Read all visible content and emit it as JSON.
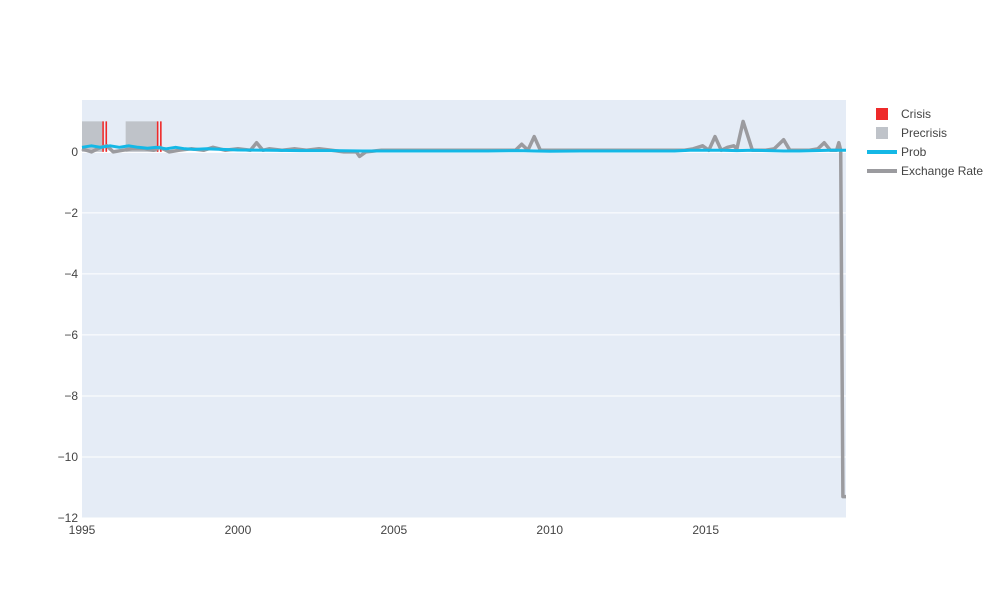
{
  "chart_data": {
    "type": "line",
    "title": "",
    "xlabel": "",
    "ylabel": "",
    "xlim": [
      1995.0,
      2019.5
    ],
    "ylim": [
      -12,
      1.7
    ],
    "x_ticks": [
      1995,
      2000,
      2005,
      2010,
      2015
    ],
    "x_tick_labels": [
      "1995",
      "2000",
      "2005",
      "2010",
      "2015"
    ],
    "y_ticks": [
      0,
      -2,
      -4,
      -6,
      -8,
      -10,
      -12
    ],
    "y_tick_labels": [
      "0",
      "−2",
      "−4",
      "−6",
      "−8",
      "−10",
      "−12"
    ],
    "grid": true,
    "legend_position": "right",
    "colors": {
      "plot_bg": "#e5ecf6",
      "grid": "#ffffff",
      "crisis": "#ee2a2a",
      "precrisis": "#bfc3c9",
      "prob": "#14b8e6",
      "exchange_rate": "#9b9b9f"
    },
    "legend": [
      {
        "name": "Crisis",
        "kind": "bar",
        "color_key": "crisis"
      },
      {
        "name": "Precrisis",
        "kind": "bar",
        "color_key": "precrisis"
      },
      {
        "name": "Prob",
        "kind": "line",
        "color_key": "prob"
      },
      {
        "name": "Exchange Rate",
        "kind": "line",
        "color_key": "exchange_rate"
      }
    ],
    "bar_height": 1.0,
    "precrisis_intervals": [
      [
        1995.0,
        1995.65
      ],
      [
        1996.4,
        1997.4
      ]
    ],
    "crisis_intervals": [
      [
        1995.65,
        1995.85
      ],
      [
        1997.4,
        1997.55
      ]
    ],
    "series": [
      {
        "name": "Exchange Rate",
        "color_key": "exchange_rate",
        "x": [
          1995.0,
          1995.3,
          1995.6,
          1995.8,
          1996.0,
          1996.3,
          1996.6,
          1997.0,
          1997.3,
          1997.5,
          1997.8,
          1998.1,
          1998.5,
          1998.9,
          1999.2,
          1999.6,
          2000.0,
          2000.4,
          2000.6,
          2000.8,
          2001.0,
          2001.4,
          2001.8,
          2002.2,
          2002.6,
          2003.0,
          2003.4,
          2003.8,
          2003.9,
          2004.1,
          2004.6,
          2005.0,
          2005.5,
          2006.0,
          2006.5,
          2007.0,
          2007.5,
          2008.0,
          2008.5,
          2008.9,
          2009.1,
          2009.3,
          2009.5,
          2009.7,
          2010.0,
          2010.5,
          2011.0,
          2011.5,
          2012.0,
          2012.5,
          2013.0,
          2013.5,
          2014.0,
          2014.3,
          2014.6,
          2014.9,
          2015.1,
          2015.3,
          2015.5,
          2015.7,
          2015.9,
          2016.0,
          2016.2,
          2016.5,
          2016.9,
          2017.2,
          2017.5,
          2017.7,
          2018.0,
          2018.3,
          2018.6,
          2018.8,
          2019.0,
          2019.1,
          2019.2,
          2019.27,
          2019.33,
          2019.4,
          2019.5
        ],
        "values": [
          0.1,
          0.0,
          0.15,
          0.2,
          0.0,
          0.05,
          0.1,
          0.1,
          0.05,
          0.15,
          0.0,
          0.05,
          0.1,
          0.05,
          0.15,
          0.05,
          0.1,
          0.05,
          0.3,
          0.05,
          0.1,
          0.05,
          0.1,
          0.05,
          0.1,
          0.05,
          0.0,
          0.0,
          -0.15,
          0.0,
          0.05,
          0.05,
          0.05,
          0.05,
          0.05,
          0.05,
          0.05,
          0.05,
          0.05,
          0.05,
          0.25,
          0.05,
          0.5,
          0.05,
          0.05,
          0.05,
          0.05,
          0.05,
          0.05,
          0.05,
          0.05,
          0.05,
          0.05,
          0.05,
          0.1,
          0.2,
          0.05,
          0.5,
          0.05,
          0.15,
          0.2,
          0.1,
          1.0,
          0.05,
          0.05,
          0.1,
          0.4,
          0.05,
          0.05,
          0.05,
          0.1,
          0.3,
          0.05,
          0.05,
          0.05,
          0.3,
          0.05,
          -11.3,
          -11.3
        ]
      },
      {
        "name": "Prob",
        "color_key": "prob",
        "x": [
          1995.0,
          1995.3,
          1995.6,
          1995.9,
          1996.2,
          1996.5,
          1996.8,
          1997.1,
          1997.4,
          1997.7,
          1998.0,
          1998.3,
          1998.6,
          1999.0,
          1999.5,
          2000.0,
          2001.0,
          2002.0,
          2003.0,
          2004.0,
          2005.0,
          2006.0,
          2007.0,
          2008.0,
          2009.0,
          2009.5,
          2010.0,
          2011.0,
          2012.0,
          2013.0,
          2014.0,
          2014.5,
          2015.0,
          2015.5,
          2016.0,
          2016.5,
          2017.0,
          2017.5,
          2018.0,
          2018.5,
          2019.0,
          2019.5
        ],
        "values": [
          0.15,
          0.2,
          0.15,
          0.2,
          0.15,
          0.2,
          0.15,
          0.12,
          0.15,
          0.1,
          0.15,
          0.1,
          0.08,
          0.1,
          0.08,
          0.06,
          0.05,
          0.04,
          0.04,
          0.03,
          0.03,
          0.03,
          0.03,
          0.03,
          0.04,
          0.03,
          0.02,
          0.03,
          0.03,
          0.03,
          0.03,
          0.05,
          0.05,
          0.05,
          0.04,
          0.05,
          0.04,
          0.03,
          0.03,
          0.04,
          0.05,
          0.05
        ]
      }
    ]
  }
}
